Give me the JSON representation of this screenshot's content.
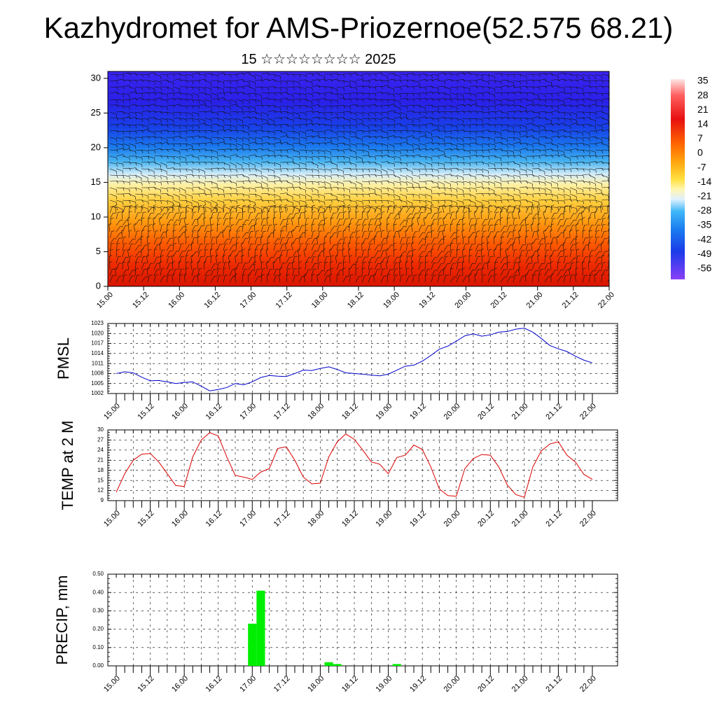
{
  "header": {
    "title": "Kazhydromet for AMS-Priozernoe(52.575 68.21)",
    "subtitle": "15 ☆☆☆☆☆☆☆☆ 2025"
  },
  "colorbar": {
    "labels": [
      "35",
      "28",
      "21",
      "14",
      "7",
      "0",
      "-7",
      "-14",
      "-21",
      "-28",
      "-35",
      "-42",
      "-49",
      "-56"
    ]
  },
  "chart_data": [
    {
      "type": "heatmap",
      "title": "",
      "xlabel": "",
      "ylabel": "",
      "x_tick_labels": [
        "15.00",
        "15.12",
        "16.00",
        "16.12",
        "17.00",
        "17.12",
        "18.00",
        "18.12",
        "19.00",
        "19.12",
        "20.00",
        "20.12",
        "21.00",
        "21.12",
        "22.00"
      ],
      "y_ticks": [
        0,
        5,
        10,
        15,
        20,
        25,
        30
      ],
      "ylim": [
        0,
        31
      ],
      "colorbar_range": [
        -56,
        35
      ],
      "temperature_profile_by_level": [
        {
          "level": 0,
          "value": 28
        },
        {
          "level": 5,
          "value": 20
        },
        {
          "level": 10,
          "value": 10
        },
        {
          "level": 15,
          "value": -8
        },
        {
          "level": 20,
          "value": -35
        },
        {
          "level": 25,
          "value": -50
        },
        {
          "level": 30,
          "value": -56
        }
      ],
      "overlay": "wind barbs"
    },
    {
      "type": "line",
      "ylabel": "PMSL",
      "ylim": [
        1002,
        1023
      ],
      "y_ticks": [
        1002,
        1005,
        1008,
        1011,
        1014,
        1017,
        1020,
        1023
      ],
      "x_tick_labels": [
        "15.00",
        "15.12",
        "16.00",
        "16.12",
        "17.00",
        "17.12",
        "18.00",
        "18.12",
        "19.00",
        "19.12",
        "20.00",
        "20.12",
        "21.00",
        "21.12",
        "22.00"
      ],
      "color": "#0000cc",
      "x_hours": [
        0,
        3,
        6,
        9,
        12,
        15,
        18,
        21,
        24,
        27,
        30,
        33,
        36,
        39,
        42,
        45,
        48,
        51,
        54,
        57,
        60,
        63,
        66,
        69,
        72,
        75,
        78,
        81,
        84,
        87,
        90,
        93,
        96,
        99,
        102,
        105,
        108,
        111,
        114,
        117,
        120,
        123,
        126,
        129,
        132,
        135,
        138,
        141,
        144,
        147,
        150,
        153,
        156,
        159,
        162,
        165,
        168
      ],
      "values": [
        1008,
        1008.5,
        1008.2,
        1006.9,
        1005.8,
        1005.9,
        1005.5,
        1005,
        1005.3,
        1005.5,
        1004.2,
        1002.8,
        1003.2,
        1003.8,
        1005,
        1004.6,
        1005.5,
        1006.8,
        1007.4,
        1007.2,
        1007.1,
        1008,
        1009,
        1008.9,
        1009.5,
        1010,
        1009.2,
        1008.2,
        1008,
        1007.8,
        1007.5,
        1007.3,
        1007.8,
        1009,
        1010.2,
        1010.5,
        1011.7,
        1013.4,
        1015.3,
        1016.2,
        1017.7,
        1019.3,
        1019.9,
        1019.2,
        1019.6,
        1020.4,
        1020.6,
        1021.3,
        1021.6,
        1020.4,
        1018.5,
        1016.4,
        1015.4,
        1014.6,
        1013.2,
        1012,
        1011.2
      ]
    },
    {
      "type": "line",
      "ylabel": "TEMP at 2 M",
      "ylim": [
        9,
        30
      ],
      "y_ticks": [
        9,
        12,
        15,
        18,
        21,
        24,
        27,
        30
      ],
      "x_tick_labels": [
        "15.00",
        "15.12",
        "16.00",
        "16.12",
        "17.00",
        "17.12",
        "18.00",
        "18.12",
        "19.00",
        "19.12",
        "20.00",
        "20.12",
        "21.00",
        "21.12",
        "22.00"
      ],
      "color": "#dd0000",
      "x_hours": [
        0,
        3,
        6,
        9,
        12,
        15,
        18,
        21,
        24,
        27,
        30,
        33,
        36,
        39,
        42,
        45,
        48,
        51,
        54,
        57,
        60,
        63,
        66,
        69,
        72,
        75,
        78,
        81,
        84,
        87,
        90,
        93,
        96,
        99,
        102,
        105,
        108,
        111,
        114,
        117,
        120,
        123,
        126,
        129,
        132,
        135,
        138,
        141,
        144,
        147,
        150,
        153,
        156,
        159,
        162,
        165,
        168
      ],
      "values": [
        11.5,
        17,
        21,
        22.8,
        23,
        20.5,
        17,
        13.5,
        13.2,
        22,
        27,
        29.2,
        28.2,
        22,
        16.5,
        16,
        15.3,
        17.5,
        18.5,
        24.5,
        25,
        21,
        16,
        14,
        14.2,
        22,
        26.5,
        28.8,
        27.2,
        24,
        20.5,
        19.8,
        17,
        21.8,
        22.5,
        25.5,
        24.2,
        19,
        12.5,
        10.5,
        10.3,
        18.5,
        21.5,
        22.7,
        22.5,
        19,
        13.6,
        10.8,
        10,
        19,
        23.8,
        25.8,
        26.5,
        22.5,
        20.5,
        16.8,
        15.3
      ]
    },
    {
      "type": "bar",
      "ylabel": "PRECIP, mm",
      "ylim": [
        0,
        0.5
      ],
      "y_tick_labels": [
        "0.00",
        "0.10",
        "0.20",
        "0.30",
        "0.40",
        "0.50"
      ],
      "x_tick_labels": [
        "15.00",
        "15.12",
        "16.00",
        "16.12",
        "17.00",
        "17.12",
        "18.00",
        "18.12",
        "19.00",
        "19.12",
        "20.00",
        "20.12",
        "21.00",
        "21.12",
        "22.00"
      ],
      "color": "#00ee00",
      "bars": [
        {
          "hour": 48,
          "value": 0.23
        },
        {
          "hour": 51,
          "value": 0.41
        },
        {
          "hour": 75,
          "value": 0.02
        },
        {
          "hour": 78,
          "value": 0.01
        },
        {
          "hour": 99,
          "value": 0.01
        }
      ]
    }
  ]
}
